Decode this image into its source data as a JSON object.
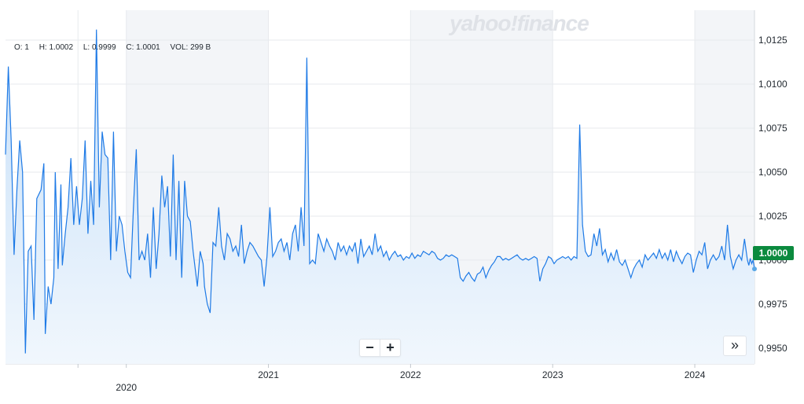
{
  "watermark": "yahoo!finance",
  "ohlc": {
    "open": "O: 1",
    "high": "H: 1.0002",
    "low": "L: 0.9999",
    "close": "C: 1.0001",
    "volume": "VOL: 299 B"
  },
  "controls": {
    "zoom_out": "−",
    "zoom_in": "+",
    "expand": "»"
  },
  "current_price": "1.0000",
  "colors": {
    "line": "#1e7ae6",
    "fill_top": "#c6dff8",
    "fill_bottom": "#f1f7fd",
    "band": "#f3f5f8",
    "grid": "#e7eaee",
    "price_tag": "#0b8a3e"
  },
  "chart_data": {
    "type": "area",
    "ylim": [
      0.9941,
      1.0142
    ],
    "y_ticks": [
      "0.9950",
      "0.9975",
      "1.0000",
      "1.0025",
      "1.0050",
      "1.0075",
      "1.0100",
      "1.0125"
    ],
    "x_ticks": [
      {
        "label": "",
        "x": 2019.66
      },
      {
        "label": "2020",
        "x": 2020.0
      },
      {
        "label": "2021",
        "x": 2021.0
      },
      {
        "label": "2022",
        "x": 2022.0
      },
      {
        "label": "2023",
        "x": 2023.0
      },
      {
        "label": "2024",
        "x": 2024.0
      }
    ],
    "xlim": [
      2019.15,
      2024.42
    ],
    "grid": true,
    "series": [
      {
        "points": [
          [
            2019.15,
            1.006
          ],
          [
            2019.17,
            1.011
          ],
          [
            2019.19,
            1.0068
          ],
          [
            2019.21,
            1.0003
          ],
          [
            2019.23,
            1.004
          ],
          [
            2019.25,
            1.0068
          ],
          [
            2019.27,
            1.005
          ],
          [
            2019.29,
            0.9947
          ],
          [
            2019.31,
            1.0005
          ],
          [
            2019.33,
            1.0008
          ],
          [
            2019.35,
            0.9966
          ],
          [
            2019.37,
            1.0035
          ],
          [
            2019.4,
            1.004
          ],
          [
            2019.42,
            1.0055
          ],
          [
            2019.43,
            0.9958
          ],
          [
            2019.45,
            0.9985
          ],
          [
            2019.47,
            0.9975
          ],
          [
            2019.49,
            0.999
          ],
          [
            2019.5,
            1.005
          ],
          [
            2019.52,
            0.9995
          ],
          [
            2019.54,
            1.0043
          ],
          [
            2019.55,
            0.9997
          ],
          [
            2019.57,
            1.0015
          ],
          [
            2019.59,
            1.003
          ],
          [
            2019.61,
            1.0058
          ],
          [
            2019.63,
            1.002
          ],
          [
            2019.65,
            1.0042
          ],
          [
            2019.67,
            1.002
          ],
          [
            2019.69,
            1.0035
          ],
          [
            2019.71,
            1.0068
          ],
          [
            2019.73,
            1.0015
          ],
          [
            2019.75,
            1.0045
          ],
          [
            2019.77,
            1.002
          ],
          [
            2019.79,
            1.0131
          ],
          [
            2019.81,
            1.003
          ],
          [
            2019.83,
            1.0073
          ],
          [
            2019.85,
            1.006
          ],
          [
            2019.87,
            1.0058
          ],
          [
            2019.89,
            1.0
          ],
          [
            2019.91,
            1.0073
          ],
          [
            2019.93,
            1.0005
          ],
          [
            2019.95,
            1.0025
          ],
          [
            2019.97,
            1.002
          ],
          [
            2019.99,
            1.0005
          ],
          [
            2020.01,
            0.9993
          ],
          [
            2020.03,
            0.999
          ],
          [
            2020.05,
            1.003
          ],
          [
            2020.07,
            1.0063
          ],
          [
            2020.09,
            1.0
          ],
          [
            2020.11,
            1.0005
          ],
          [
            2020.13,
            1.0
          ],
          [
            2020.15,
            1.0015
          ],
          [
            2020.17,
            0.999
          ],
          [
            2020.19,
            1.003
          ],
          [
            2020.21,
            0.9995
          ],
          [
            2020.23,
            1.0015
          ],
          [
            2020.25,
            1.0048
          ],
          [
            2020.27,
            1.003
          ],
          [
            2020.29,
            1.0042
          ],
          [
            2020.31,
            1.0002
          ],
          [
            2020.33,
            1.006
          ],
          [
            2020.35,
            1.0
          ],
          [
            2020.37,
            1.0045
          ],
          [
            2020.39,
            0.999
          ],
          [
            2020.41,
            1.0045
          ],
          [
            2020.43,
            1.0025
          ],
          [
            2020.45,
            1.0022
          ],
          [
            2020.47,
            1.0005
          ],
          [
            2020.5,
            0.9985
          ],
          [
            2020.52,
            1.0005
          ],
          [
            2020.54,
            0.9998
          ],
          [
            2020.55,
            0.9985
          ],
          [
            2020.57,
            0.9975
          ],
          [
            2020.59,
            0.997
          ],
          [
            2020.61,
            1.001
          ],
          [
            2020.63,
            1.0008
          ],
          [
            2020.65,
            1.003
          ],
          [
            2020.67,
            1.0008
          ],
          [
            2020.69,
            1.0
          ],
          [
            2020.71,
            1.0015
          ],
          [
            2020.73,
            1.0012
          ],
          [
            2020.75,
            1.0005
          ],
          [
            2020.77,
            1.0008
          ],
          [
            2020.79,
            1.0002
          ],
          [
            2020.81,
            1.002
          ],
          [
            2020.83,
            0.9998
          ],
          [
            2020.85,
            1.0005
          ],
          [
            2020.87,
            1.001
          ],
          [
            2020.89,
            1.0008
          ],
          [
            2020.91,
            1.0005
          ],
          [
            2020.93,
            1.0002
          ],
          [
            2020.95,
            1.0
          ],
          [
            2020.97,
            0.9985
          ],
          [
            2020.99,
            1.0002
          ],
          [
            2021.01,
            1.003
          ],
          [
            2021.03,
            1.0002
          ],
          [
            2021.05,
            1.0005
          ],
          [
            2021.07,
            1.001
          ],
          [
            2021.09,
            1.0012
          ],
          [
            2021.11,
            1.0005
          ],
          [
            2021.13,
            1.001
          ],
          [
            2021.15,
            1.0
          ],
          [
            2021.17,
            1.0015
          ],
          [
            2021.19,
            1.002
          ],
          [
            2021.21,
            1.0005
          ],
          [
            2021.23,
            1.003
          ],
          [
            2021.25,
            1.0008
          ],
          [
            2021.27,
            1.0115
          ],
          [
            2021.29,
            0.9998
          ],
          [
            2021.31,
            1.0
          ],
          [
            2021.33,
            0.9998
          ],
          [
            2021.35,
            1.0015
          ],
          [
            2021.37,
            1.001
          ],
          [
            2021.39,
            1.0005
          ],
          [
            2021.41,
            1.0012
          ],
          [
            2021.43,
            1.0008
          ],
          [
            2021.45,
            1.0005
          ],
          [
            2021.47,
            1.0
          ],
          [
            2021.49,
            1.001
          ],
          [
            2021.51,
            1.0005
          ],
          [
            2021.53,
            1.0008
          ],
          [
            2021.55,
            1.0003
          ],
          [
            2021.57,
            1.0008
          ],
          [
            2021.59,
            1.0005
          ],
          [
            2021.61,
            1.001
          ],
          [
            2021.63,
            0.9998
          ],
          [
            2021.65,
            1.0012
          ],
          [
            2021.67,
            1.0002
          ],
          [
            2021.69,
            1.0005
          ],
          [
            2021.71,
            1.0008
          ],
          [
            2021.73,
            1.0003
          ],
          [
            2021.75,
            1.0015
          ],
          [
            2021.77,
            1.0005
          ],
          [
            2021.79,
            1.0008
          ],
          [
            2021.81,
            1.0002
          ],
          [
            2021.83,
            1.0005
          ],
          [
            2021.85,
            1.0
          ],
          [
            2021.87,
            1.0003
          ],
          [
            2021.89,
            1.0005
          ],
          [
            2021.91,
            1.0002
          ],
          [
            2021.93,
            1.0003
          ],
          [
            2021.95,
            1.0
          ],
          [
            2021.97,
            1.0002
          ],
          [
            2021.99,
            1.0001
          ],
          [
            2022.01,
            1.0004
          ],
          [
            2022.03,
            1.0001
          ],
          [
            2022.05,
            1.0003
          ],
          [
            2022.07,
            1.0002
          ],
          [
            2022.09,
            1.0005
          ],
          [
            2022.11,
            1.0004
          ],
          [
            2022.13,
            1.0003
          ],
          [
            2022.15,
            1.0005
          ],
          [
            2022.17,
            1.0004
          ],
          [
            2022.19,
            1.0001
          ],
          [
            2022.21,
            1.0
          ],
          [
            2022.23,
            1.0001
          ],
          [
            2022.25,
            1.0003
          ],
          [
            2022.27,
            1.0002
          ],
          [
            2022.29,
            1.0003
          ],
          [
            2022.31,
            1.0002
          ],
          [
            2022.33,
            1.0001
          ],
          [
            2022.35,
            0.999
          ],
          [
            2022.37,
            0.9988
          ],
          [
            2022.39,
            0.9991
          ],
          [
            2022.41,
            0.9993
          ],
          [
            2022.43,
            0.999
          ],
          [
            2022.45,
            0.9988
          ],
          [
            2022.47,
            0.9992
          ],
          [
            2022.49,
            0.9993
          ],
          [
            2022.51,
            0.9996
          ],
          [
            2022.53,
            0.999
          ],
          [
            2022.55,
            0.9994
          ],
          [
            2022.57,
            0.9997
          ],
          [
            2022.59,
            0.9999
          ],
          [
            2022.61,
            1.0002
          ],
          [
            2022.63,
            1.0002
          ],
          [
            2022.65,
            1.0
          ],
          [
            2022.67,
            1.0001
          ],
          [
            2022.69,
            1.0
          ],
          [
            2022.71,
            1.0001
          ],
          [
            2022.73,
            1.0002
          ],
          [
            2022.75,
            1.0003
          ],
          [
            2022.77,
            1.0001
          ],
          [
            2022.79,
            1.0
          ],
          [
            2022.81,
            1.0001
          ],
          [
            2022.83,
            1.0
          ],
          [
            2022.85,
            1.0001
          ],
          [
            2022.87,
            1.0002
          ],
          [
            2022.89,
            1.0001
          ],
          [
            2022.91,
            0.9988
          ],
          [
            2022.93,
            0.9995
          ],
          [
            2022.95,
            0.9998
          ],
          [
            2022.97,
            1.0002
          ],
          [
            2022.99,
            1.0001
          ],
          [
            2023.01,
            0.9998
          ],
          [
            2023.03,
            1.0
          ],
          [
            2023.05,
            1.0001
          ],
          [
            2023.07,
            1.0002
          ],
          [
            2023.09,
            1.0001
          ],
          [
            2023.11,
            1.0002
          ],
          [
            2023.13,
            1.0
          ],
          [
            2023.15,
            1.0002
          ],
          [
            2023.17,
            1.0001
          ],
          [
            2023.19,
            1.0077
          ],
          [
            2023.21,
            1.002
          ],
          [
            2023.23,
            1.0005
          ],
          [
            2023.25,
            1.0002
          ],
          [
            2023.27,
            1.0003
          ],
          [
            2023.29,
            1.0015
          ],
          [
            2023.31,
            1.0008
          ],
          [
            2023.33,
            1.0018
          ],
          [
            2023.35,
            1.0003
          ],
          [
            2023.37,
            1.0006
          ],
          [
            2023.39,
            0.9999
          ],
          [
            2023.41,
            1.0004
          ],
          [
            2023.43,
            1.0
          ],
          [
            2023.45,
            1.0006
          ],
          [
            2023.47,
            0.9999
          ],
          [
            2023.49,
            0.9997
          ],
          [
            2023.51,
            1.0
          ],
          [
            2023.53,
            0.9995
          ],
          [
            2023.55,
            0.999
          ],
          [
            2023.57,
            0.9995
          ],
          [
            2023.59,
            0.9998
          ],
          [
            2023.61,
            1.0
          ],
          [
            2023.63,
            0.9996
          ],
          [
            2023.65,
            1.0003
          ],
          [
            2023.67,
            1.0
          ],
          [
            2023.69,
            1.0002
          ],
          [
            2023.71,
            1.0004
          ],
          [
            2023.73,
            1.0001
          ],
          [
            2023.75,
            1.0006
          ],
          [
            2023.77,
            1.0001
          ],
          [
            2023.79,
            1.0004
          ],
          [
            2023.81,
            1.0
          ],
          [
            2023.83,
            1.0006
          ],
          [
            2023.85,
            0.9999
          ],
          [
            2023.87,
            1.0005
          ],
          [
            2023.89,
            1.0001
          ],
          [
            2023.91,
            0.9998
          ],
          [
            2023.93,
            1.0002
          ],
          [
            2023.95,
            1.0004
          ],
          [
            2023.97,
            1.0003
          ],
          [
            2023.99,
            0.9993
          ],
          [
            2024.01,
            1.0
          ],
          [
            2024.03,
            1.0005
          ],
          [
            2024.05,
            1.0003
          ],
          [
            2024.07,
            1.001
          ],
          [
            2024.09,
            0.9995
          ],
          [
            2024.11,
            1.0
          ],
          [
            2024.13,
            1.0003
          ],
          [
            2024.15,
            1.0
          ],
          [
            2024.17,
            1.0002
          ],
          [
            2024.19,
            1.0008
          ],
          [
            2024.21,
            1.0
          ],
          [
            2024.23,
            1.002
          ],
          [
            2024.25,
            1.0002
          ],
          [
            2024.27,
            0.9995
          ],
          [
            2024.29,
            1.0
          ],
          [
            2024.31,
            1.0003
          ],
          [
            2024.33,
            1.0
          ],
          [
            2024.35,
            1.0012
          ],
          [
            2024.37,
            1.0
          ],
          [
            2024.38,
            0.9997
          ],
          [
            2024.39,
            1.0001
          ],
          [
            2024.4,
            0.9998
          ],
          [
            2024.41,
            1.0
          ],
          [
            2024.42,
            0.9995
          ]
        ]
      }
    ]
  }
}
